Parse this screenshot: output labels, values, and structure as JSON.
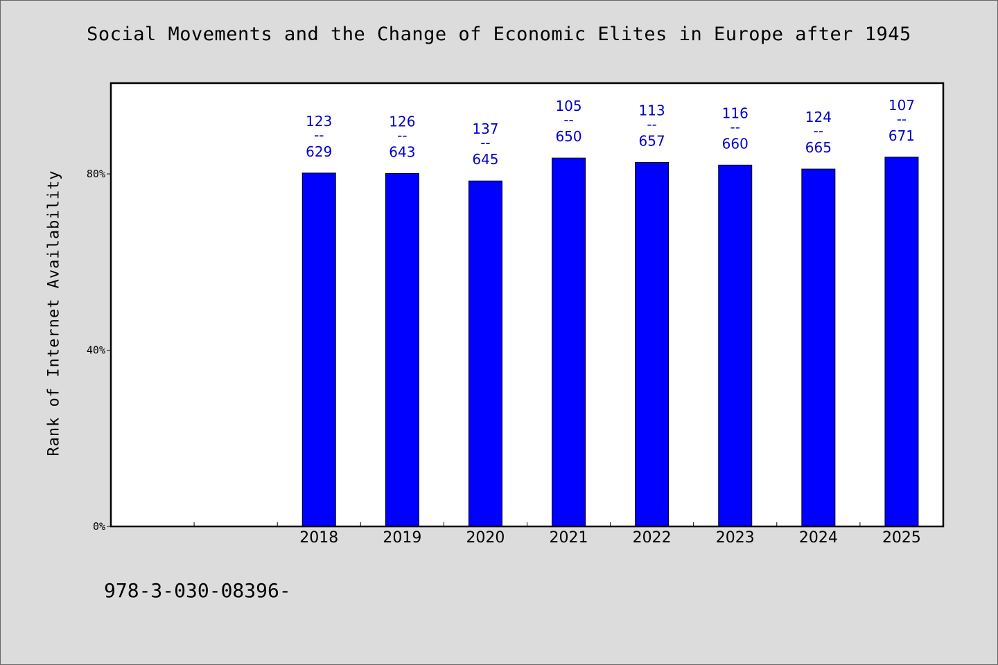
{
  "title": "Social Movements and the Change of Economic Elites in Europe after 1945",
  "footer_text": "978-3-030-08396-",
  "chart_data": {
    "type": "bar",
    "title": "Social Movements and the Change of Economic Elites in Europe after 1945",
    "ylabel": "Rank of Internet Availability",
    "xlabel": "",
    "categories": [
      "",
      "",
      "2018",
      "2019",
      "2020",
      "2021",
      "2022",
      "2023",
      "2024",
      "2025"
    ],
    "values": [
      null,
      null,
      80.2,
      80.1,
      78.4,
      83.6,
      82.6,
      82.0,
      81.1,
      83.8
    ],
    "data_labels": [
      null,
      null,
      {
        "top": "123",
        "mid": "--",
        "bottom": "629"
      },
      {
        "top": "126",
        "mid": "--",
        "bottom": "643"
      },
      {
        "top": "137",
        "mid": "--",
        "bottom": "645"
      },
      {
        "top": "105",
        "mid": "--",
        "bottom": "650"
      },
      {
        "top": "113",
        "mid": "--",
        "bottom": "657"
      },
      {
        "top": "116",
        "mid": "--",
        "bottom": "660"
      },
      {
        "top": "124",
        "mid": "--",
        "bottom": "665"
      },
      {
        "top": "107",
        "mid": "--",
        "bottom": "671"
      }
    ],
    "yticks": [
      {
        "value": 0,
        "label": "0%"
      },
      {
        "value": 40,
        "label": "40%"
      },
      {
        "value": 80,
        "label": "80%"
      }
    ],
    "ylim": [
      0,
      100.6
    ],
    "grid": false,
    "colors": {
      "bar": "#0000ff",
      "bar_edge": "#000000",
      "value_label": "#0000cc",
      "plot_bg": "#ffffff",
      "page_bg": "#dcdcdc"
    }
  }
}
